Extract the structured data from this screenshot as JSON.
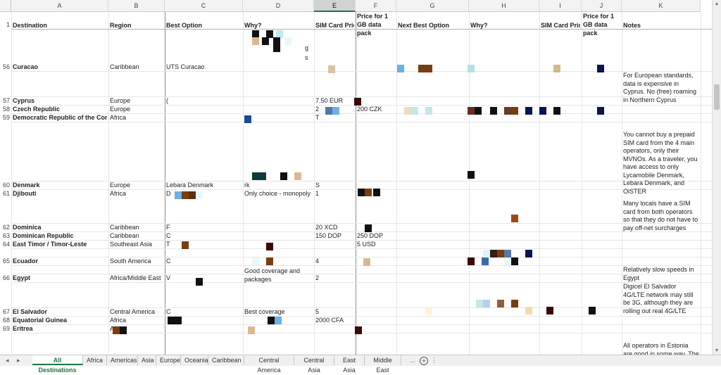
{
  "columns": [
    "A",
    "B",
    "C",
    "D",
    "E",
    "F",
    "G",
    "H",
    "I",
    "J",
    "K"
  ],
  "selected_column": "E",
  "header_row": {
    "row_number": "1",
    "cells": [
      "Destination",
      "Region",
      "Best Option",
      "Why?",
      "SIM Card Price",
      "Price for 1 GB data pack",
      "Next Best Option",
      "Why?",
      "SIM Card Price",
      "Price for 1 GB data pack",
      "Notes"
    ]
  },
  "top_fragment": [
    "g",
    "s"
  ],
  "rows": [
    {
      "num": "56",
      "destination": "Curacao",
      "region": "Caribbean",
      "best_option": "UTS Curacao",
      "why": "",
      "sim_price": "",
      "price_1gb": "",
      "notes": ""
    },
    {
      "num": "57",
      "destination": "Cyprus",
      "region": "Europe",
      "best_option": "(",
      "why": "",
      "sim_price": "7.50 EUR",
      "price_1gb": "",
      "notes": "For European standards, data is expensive in Cyprus. No (free) roaming in Northern Cyprus"
    },
    {
      "num": "58",
      "destination": "Czech Republic",
      "region": "Europe",
      "best_option": "",
      "why": "",
      "sim_price": "2",
      "price_1gb": "200 CZK",
      "notes": ""
    },
    {
      "num": "59",
      "destination": "Democratic Republic of the Congo",
      "region": "Africa",
      "best_option": "",
      "why": "",
      "sim_price": "T",
      "price_1gb": "",
      "notes": ""
    },
    {
      "num": "60",
      "destination": "Denmark",
      "region": "Europe",
      "best_option": "Lebara Denmark",
      "why": "rk",
      "sim_price": "S",
      "price_1gb": "",
      "notes": "You cannot buy a prepaid SIM card from the 4 main operators, only their MVNOs. As a traveler, you have access to only Lycamobile Denmark, Lebara Denmark, and OiSTER"
    },
    {
      "num": "61",
      "destination": "Djibouti",
      "region": "Africa",
      "best_option": "D",
      "why": "Only choice - monopoly",
      "sim_price": "1",
      "price_1gb": "",
      "notes": ""
    },
    {
      "num": "62",
      "destination": "Dominica",
      "region": "Caribbean",
      "best_option": "F",
      "why": "",
      "sim_price": "20 XCD",
      "price_1gb": "",
      "notes": "Many locals have a SIM card from both operators so that they do not have to pay off-net surcharges"
    },
    {
      "num": "63",
      "destination": "Dominican Republic",
      "region": "Caribbean",
      "best_option": "C",
      "why": "",
      "sim_price": "150 DOP",
      "price_1gb": "250 DOP",
      "notes": ""
    },
    {
      "num": "64",
      "destination": "East Timor / Timor-Leste",
      "region": "Southeast Asia",
      "best_option": "T",
      "why": "",
      "sim_price": "",
      "price_1gb": "5 USD",
      "notes": ""
    },
    {
      "num": "65",
      "destination": "Ecuador",
      "region": "South America",
      "best_option": "C",
      "why": "",
      "sim_price": "4",
      "price_1gb": "",
      "notes": ""
    },
    {
      "num": "66",
      "destination": "Egypt",
      "region": "Africa/Middle East",
      "best_option": "V",
      "why": "Good coverage and packages",
      "sim_price": "2",
      "price_1gb": "",
      "notes": "Relatively slow speeds in Egypt"
    },
    {
      "num": "67",
      "destination": "El Salvador",
      "region": "Central America",
      "best_option": "C",
      "why": "Best coverage",
      "sim_price": "5",
      "price_1gb": "",
      "notes": "Digicel El Salvador 4G/LTE network may still be 3G, although they are rolling out real 4G/LTE"
    },
    {
      "num": "68",
      "destination": "Equatorial Guinea",
      "region": "Africa",
      "best_option": "",
      "why": "",
      "sim_price": "2000 CFA",
      "price_1gb": "",
      "notes": ""
    },
    {
      "num": "69",
      "destination": "Eritrea",
      "region": "Africa",
      "best_option": "",
      "why": "",
      "sim_price": "",
      "price_1gb": "",
      "notes": "All operators in Estonia are good in some way. The other"
    }
  ],
  "sheet_tabs": [
    "All Destinations",
    "Africa",
    "Americas",
    "Asia",
    "Europe",
    "Oceania",
    "Caribbean",
    "Central America",
    "Central Asia",
    "East Asia",
    "Middle East"
  ],
  "active_tab": "All Destinations",
  "tab_nav": {
    "prev": "◂",
    "next": "▸",
    "more": "...",
    "add": "+",
    "options": "⋮"
  },
  "colors": {
    "accent": "#217346",
    "grid": "#e6e6e6",
    "header_bg": "#f3f3f3"
  }
}
